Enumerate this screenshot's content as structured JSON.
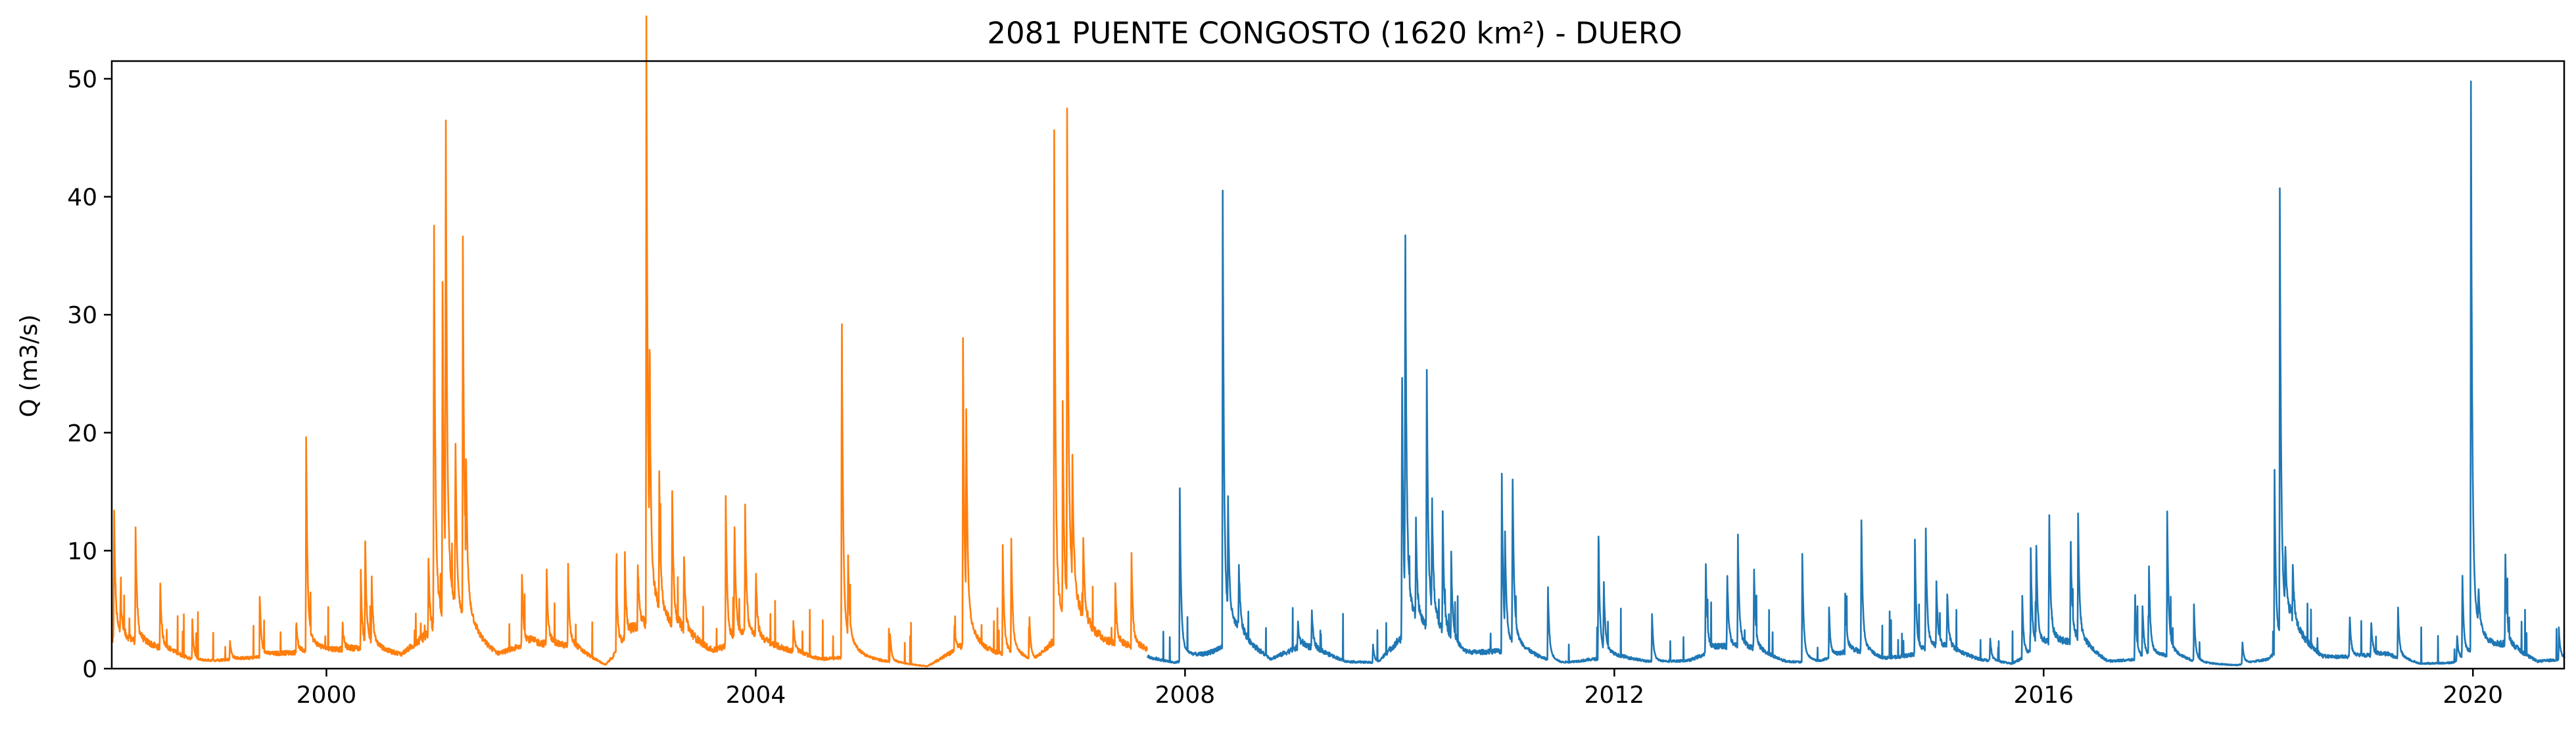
{
  "chart_data": {
    "type": "line",
    "title": "2081 PUENTE CONGOSTO (1620 km²) - DUERO",
    "xlabel": "",
    "ylabel": "Q (m3/s)",
    "xlim": [
      1998.0,
      2020.85
    ],
    "ylim": [
      0,
      51.5
    ],
    "x_ticks": [
      2000,
      2004,
      2008,
      2012,
      2016,
      2020
    ],
    "x_tick_labels": [
      "2000",
      "2004",
      "2008",
      "2012",
      "2016",
      "2020"
    ],
    "y_ticks": [
      0,
      10,
      20,
      30,
      40,
      50
    ],
    "y_tick_labels": [
      "0",
      "10",
      "20",
      "30",
      "40",
      "50"
    ],
    "grid": false,
    "series": [
      {
        "name": "series-1998-2007",
        "color": "#ff7f0e",
        "x_range": [
          1998.0,
          2007.65
        ],
        "baseflow": [
          [
            1998.0,
            2.5
          ],
          [
            1998.2,
            2.2
          ],
          [
            1998.5,
            1.6
          ],
          [
            1998.8,
            0.6
          ],
          [
            1999.3,
            0.9
          ],
          [
            1999.6,
            1.3
          ],
          [
            1999.9,
            1.5
          ],
          [
            2000.3,
            1.7
          ],
          [
            2000.7,
            1.2
          ],
          [
            2000.95,
            3.0
          ],
          [
            2001.3,
            2.5
          ],
          [
            2001.6,
            1.2
          ],
          [
            2001.9,
            2.2
          ],
          [
            2002.3,
            1.8
          ],
          [
            2002.6,
            0.3
          ],
          [
            2002.9,
            3.5
          ],
          [
            2003.3,
            3.0
          ],
          [
            2003.6,
            1.5
          ],
          [
            2003.9,
            2.5
          ],
          [
            2004.3,
            1.6
          ],
          [
            2004.6,
            0.8
          ],
          [
            2004.9,
            1.0
          ],
          [
            2005.3,
            0.5
          ],
          [
            2005.6,
            0.2
          ],
          [
            2005.9,
            1.8
          ],
          [
            2006.3,
            1.2
          ],
          [
            2006.6,
            0.6
          ],
          [
            2006.9,
            3.5
          ],
          [
            2007.3,
            2.2
          ],
          [
            2007.65,
            1.5
          ]
        ],
        "peaks": [
          [
            1998.02,
            11.5
          ],
          [
            1998.08,
            3.5
          ],
          [
            1998.22,
            9.8
          ],
          [
            1998.45,
            5.7
          ],
          [
            1998.75,
            3.1
          ],
          [
            1999.1,
            1.6
          ],
          [
            1999.38,
            4.4
          ],
          [
            1999.72,
            2.3
          ],
          [
            1999.81,
            17.5
          ],
          [
            2000.15,
            2.0
          ],
          [
            2000.32,
            6.0
          ],
          [
            2000.36,
            8.6
          ],
          [
            2000.42,
            5.5
          ],
          [
            2000.95,
            6.3
          ],
          [
            2001.0,
            37.8
          ],
          [
            2001.08,
            30.0
          ],
          [
            2001.11,
            40.3
          ],
          [
            2001.2,
            15.4
          ],
          [
            2001.27,
            31.5
          ],
          [
            2001.3,
            9.0
          ],
          [
            2001.82,
            6.4
          ],
          [
            2002.05,
            6.6
          ],
          [
            2002.25,
            7.0
          ],
          [
            2002.7,
            7.1
          ],
          [
            2002.78,
            6.7
          ],
          [
            2002.9,
            5.2
          ],
          [
            2002.98,
            49.0
          ],
          [
            2003.01,
            15.5
          ],
          [
            2003.1,
            11.0
          ],
          [
            2003.22,
            11.3
          ],
          [
            2003.33,
            6.5
          ],
          [
            2003.72,
            12.1
          ],
          [
            2003.8,
            10.5
          ],
          [
            2003.9,
            10.5
          ],
          [
            2004.0,
            5.6
          ],
          [
            2004.35,
            2.5
          ],
          [
            2004.8,
            31.0
          ],
          [
            2004.86,
            6.2
          ],
          [
            2005.25,
            2.5
          ],
          [
            2005.85,
            2.0
          ],
          [
            2005.93,
            26.2
          ],
          [
            2005.96,
            16.5
          ],
          [
            2006.3,
            9.0
          ],
          [
            2006.38,
            9.2
          ],
          [
            2006.55,
            3.3
          ],
          [
            2006.78,
            41.2
          ],
          [
            2006.86,
            16.0
          ],
          [
            2006.9,
            41.3
          ],
          [
            2006.95,
            10.0
          ],
          [
            2007.05,
            7.2
          ],
          [
            2007.35,
            5.0
          ],
          [
            2007.5,
            7.8
          ]
        ]
      },
      {
        "name": "series-2007-2020",
        "color": "#1f77b4",
        "x_range": [
          2007.65,
          2020.85
        ],
        "baseflow": [
          [
            2007.65,
            1.0
          ],
          [
            2007.9,
            0.5
          ],
          [
            2008.2,
            1.2
          ],
          [
            2008.5,
            2.5
          ],
          [
            2008.8,
            0.8
          ],
          [
            2009.1,
            2.0
          ],
          [
            2009.5,
            0.6
          ],
          [
            2009.8,
            0.5
          ],
          [
            2010.0,
            2.5
          ],
          [
            2010.3,
            3.0
          ],
          [
            2010.6,
            1.2
          ],
          [
            2010.9,
            1.5
          ],
          [
            2011.2,
            1.2
          ],
          [
            2011.5,
            0.4
          ],
          [
            2011.8,
            0.8
          ],
          [
            2012.1,
            0.9
          ],
          [
            2012.4,
            0.5
          ],
          [
            2012.7,
            0.7
          ],
          [
            2013.0,
            1.8
          ],
          [
            2013.3,
            1.5
          ],
          [
            2013.6,
            0.6
          ],
          [
            2013.9,
            0.5
          ],
          [
            2014.2,
            1.5
          ],
          [
            2014.5,
            0.8
          ],
          [
            2014.8,
            1.2
          ],
          [
            2015.1,
            1.6
          ],
          [
            2015.4,
            0.8
          ],
          [
            2015.7,
            0.4
          ],
          [
            2016.0,
            1.8
          ],
          [
            2016.3,
            2.2
          ],
          [
            2016.6,
            0.6
          ],
          [
            2016.9,
            0.8
          ],
          [
            2017.2,
            1.0
          ],
          [
            2017.5,
            0.4
          ],
          [
            2017.8,
            0.3
          ],
          [
            2018.1,
            0.8
          ],
          [
            2018.3,
            3.0
          ],
          [
            2018.6,
            1.0
          ],
          [
            2018.9,
            1.0
          ],
          [
            2019.2,
            1.2
          ],
          [
            2019.5,
            0.4
          ],
          [
            2019.8,
            0.5
          ],
          [
            2020.0,
            1.2
          ],
          [
            2020.3,
            2.0
          ],
          [
            2020.6,
            0.6
          ],
          [
            2020.85,
            0.8
          ]
        ],
        "peaks": [
          [
            2007.95,
            14.5
          ],
          [
            2008.35,
            38.0
          ],
          [
            2008.4,
            8.9
          ],
          [
            2008.5,
            5.5
          ],
          [
            2009.05,
            2.2
          ],
          [
            2009.18,
            3.2
          ],
          [
            2009.75,
            1.5
          ],
          [
            2010.02,
            23.6
          ],
          [
            2010.05,
            33.5
          ],
          [
            2010.15,
            8.0
          ],
          [
            2010.25,
            24.2
          ],
          [
            2010.3,
            9.5
          ],
          [
            2010.4,
            9.8
          ],
          [
            2010.48,
            6.5
          ],
          [
            2010.95,
            15.0
          ],
          [
            2010.98,
            8.0
          ],
          [
            2011.05,
            15.3
          ],
          [
            2011.38,
            6.2
          ],
          [
            2011.85,
            11.3
          ],
          [
            2011.9,
            6.0
          ],
          [
            2012.35,
            4.0
          ],
          [
            2012.85,
            8.2
          ],
          [
            2013.05,
            6.6
          ],
          [
            2013.15,
            9.2
          ],
          [
            2013.3,
            7.0
          ],
          [
            2013.75,
            9.0
          ],
          [
            2014.0,
            4.0
          ],
          [
            2014.15,
            5.0
          ],
          [
            2014.3,
            11.7
          ],
          [
            2014.8,
            9.2
          ],
          [
            2014.9,
            10.6
          ],
          [
            2015.0,
            5.2
          ],
          [
            2015.1,
            4.8
          ],
          [
            2015.5,
            2.0
          ],
          [
            2015.8,
            5.0
          ],
          [
            2015.88,
            7.8
          ],
          [
            2015.93,
            8.5
          ],
          [
            2016.05,
            11.9
          ],
          [
            2016.25,
            9.3
          ],
          [
            2016.32,
            10.3
          ],
          [
            2016.85,
            6.0
          ],
          [
            2016.92,
            4.2
          ],
          [
            2016.98,
            7.5
          ],
          [
            2017.15,
            12.2
          ],
          [
            2017.4,
            4.5
          ],
          [
            2017.85,
            2.0
          ],
          [
            2018.15,
            15.3
          ],
          [
            2018.2,
            35.1
          ],
          [
            2018.25,
            5.0
          ],
          [
            2018.32,
            4.8
          ],
          [
            2018.85,
            3.7
          ],
          [
            2019.05,
            3.0
          ],
          [
            2019.3,
            4.3
          ],
          [
            2019.85,
            2.3
          ],
          [
            2019.9,
            7.0
          ],
          [
            2019.98,
            48.3
          ],
          [
            2020.05,
            3.0
          ],
          [
            2020.3,
            8.0
          ],
          [
            2020.8,
            2.5
          ]
        ]
      }
    ]
  }
}
